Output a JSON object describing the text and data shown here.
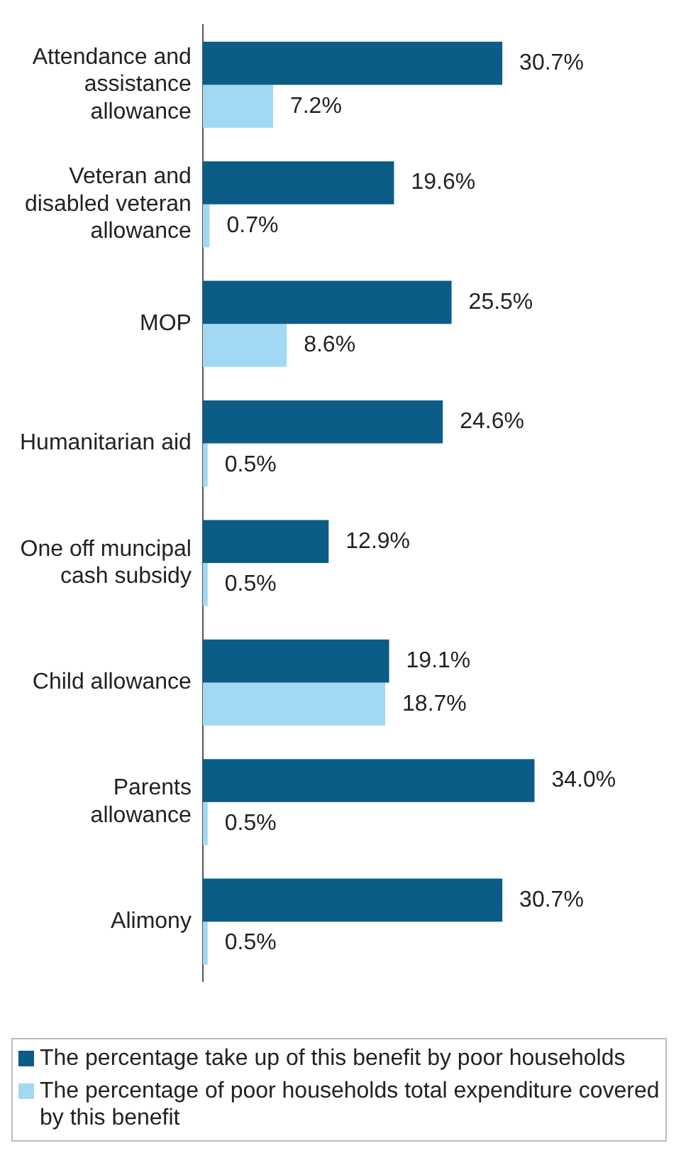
{
  "chart_data": {
    "type": "bar",
    "orientation": "horizontal",
    "categories": [
      "Attendance and assistance allowance",
      "Veteran and disabled veteran allowance",
      "MOP",
      "Humanitarian aid",
      "One off muncipal cash subsidy",
      "Child allowance",
      "Parents allowance",
      "Alimony"
    ],
    "series": [
      {
        "name": "The percentage take up of this benefit by poor households",
        "color": "#0b5c86",
        "values": [
          30.7,
          19.6,
          25.5,
          24.6,
          12.9,
          19.1,
          34.0,
          30.7
        ],
        "value_labels": [
          "30.7%",
          "19.6%",
          "25.5%",
          "24.6%",
          "12.9%",
          "19.1%",
          "34.0%",
          "30.7%"
        ]
      },
      {
        "name": "The percentage of poor households total expenditure covered by this benefit",
        "color": "#a3d8f4",
        "values": [
          7.2,
          0.7,
          8.6,
          0.5,
          0.5,
          18.7,
          0.5,
          0.5
        ],
        "value_labels": [
          "7.2%",
          "0.7%",
          "8.6%",
          "0.5%",
          "0.5%",
          "18.7%",
          "0.5%",
          "0.5%"
        ]
      }
    ],
    "grid": false,
    "legend": "bottom",
    "tick_labels": "y"
  }
}
